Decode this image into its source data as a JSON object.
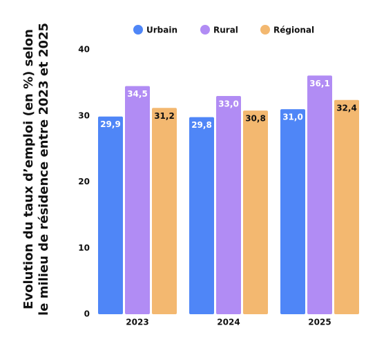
{
  "chart_data": {
    "type": "bar",
    "title": [
      "Evolution du taux d’emploi (en %) selon",
      "le milieu de résidence entre 2023 et 2025"
    ],
    "categories": [
      "2023",
      "2024",
      "2025"
    ],
    "series": [
      {
        "name": "Urbain",
        "color": "#4f86f7",
        "values": [
          29.9,
          29.8,
          31.0
        ],
        "value_labels": [
          "29,9",
          "29,8",
          "31,0"
        ]
      },
      {
        "name": "Rural",
        "color": "#b18cf4",
        "values": [
          34.5,
          33.0,
          36.1
        ],
        "value_labels": [
          "34,5",
          "33,0",
          "36,1"
        ]
      },
      {
        "name": "Régional",
        "color": "#f3b870",
        "values": [
          31.2,
          30.8,
          32.4
        ],
        "value_labels": [
          "31,2",
          "30,8",
          "32,4"
        ]
      }
    ],
    "ylim": [
      0,
      40
    ],
    "yticks": [
      0,
      10,
      20,
      30,
      40
    ],
    "grid": false,
    "legend": "top"
  }
}
